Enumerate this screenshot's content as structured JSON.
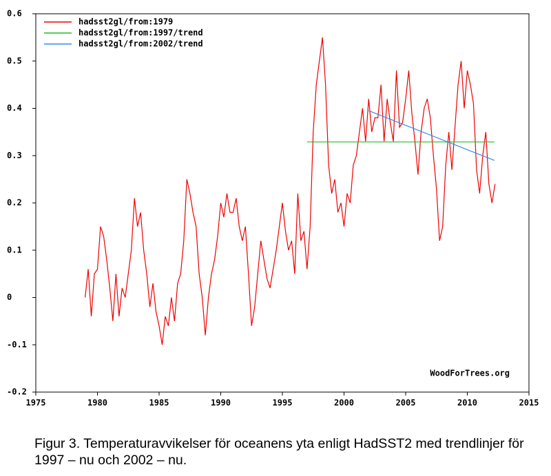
{
  "chart_data": {
    "type": "line",
    "legend": "top-left",
    "watermark": "WoodForTrees.org",
    "caption": "Figur 3. Temperaturavvikelser för oceanens yta enligt HadSST2 med trendlinjer för 1997 – nu och 2002 – nu.",
    "xlim": [
      1975,
      2015
    ],
    "xticks": [
      1975,
      1980,
      1985,
      1990,
      1995,
      2000,
      2005,
      2010,
      2015
    ],
    "ylim": [
      -0.2,
      0.6
    ],
    "yticks": [
      -0.2,
      -0.1,
      0,
      0.1,
      0.2,
      0.3,
      0.4,
      0.5,
      0.6
    ],
    "series": [
      {
        "name": "hadsst2gl/from:1979",
        "color": "#ee0000",
        "x": [
          1979,
          1979.25,
          1979.5,
          1979.75,
          1980,
          1980.25,
          1980.5,
          1980.75,
          1981,
          1981.25,
          1981.5,
          1981.75,
          1982,
          1982.25,
          1982.5,
          1982.75,
          1983,
          1983.25,
          1983.5,
          1983.75,
          1984,
          1984.25,
          1984.5,
          1984.75,
          1985,
          1985.25,
          1985.5,
          1985.75,
          1986,
          1986.25,
          1986.5,
          1986.75,
          1987,
          1987.25,
          1987.5,
          1987.75,
          1988,
          1988.25,
          1988.5,
          1988.75,
          1989,
          1989.25,
          1989.5,
          1989.75,
          1990,
          1990.25,
          1990.5,
          1990.75,
          1991,
          1991.25,
          1991.5,
          1991.75,
          1992,
          1992.25,
          1992.5,
          1992.75,
          1993,
          1993.25,
          1993.5,
          1993.75,
          1994,
          1994.25,
          1994.5,
          1994.75,
          1995,
          1995.25,
          1995.5,
          1995.75,
          1996,
          1996.25,
          1996.5,
          1996.75,
          1997,
          1997.25,
          1997.5,
          1997.75,
          1998,
          1998.25,
          1998.5,
          1998.75,
          1999,
          1999.25,
          1999.5,
          1999.75,
          2000,
          2000.25,
          2000.5,
          2000.75,
          2001,
          2001.25,
          2001.5,
          2001.75,
          2002,
          2002.25,
          2002.5,
          2002.75,
          2003,
          2003.25,
          2003.5,
          2003.75,
          2004,
          2004.25,
          2004.5,
          2004.75,
          2005,
          2005.25,
          2005.5,
          2005.75,
          2006,
          2006.25,
          2006.5,
          2006.75,
          2007,
          2007.25,
          2007.5,
          2007.75,
          2008,
          2008.25,
          2008.5,
          2008.75,
          2009,
          2009.25,
          2009.5,
          2009.75,
          2010,
          2010.25,
          2010.5,
          2010.75,
          2011,
          2011.25,
          2011.5,
          2011.75,
          2012,
          2012.25
        ],
        "values": [
          0.0,
          0.06,
          -0.04,
          0.05,
          0.06,
          0.15,
          0.13,
          0.08,
          0.02,
          -0.05,
          0.05,
          -0.04,
          0.02,
          0.0,
          0.05,
          0.1,
          0.21,
          0.15,
          0.18,
          0.1,
          0.05,
          -0.02,
          0.03,
          -0.03,
          -0.06,
          -0.1,
          -0.04,
          -0.06,
          0.0,
          -0.05,
          0.03,
          0.05,
          0.12,
          0.25,
          0.22,
          0.18,
          0.15,
          0.05,
          0.0,
          -0.08,
          0.0,
          0.05,
          0.08,
          0.13,
          0.2,
          0.17,
          0.22,
          0.18,
          0.18,
          0.21,
          0.15,
          0.12,
          0.15,
          0.05,
          -0.06,
          -0.02,
          0.05,
          0.12,
          0.08,
          0.04,
          0.02,
          0.06,
          0.1,
          0.15,
          0.2,
          0.14,
          0.1,
          0.12,
          0.05,
          0.22,
          0.12,
          0.14,
          0.06,
          0.15,
          0.35,
          0.45,
          0.5,
          0.55,
          0.45,
          0.28,
          0.22,
          0.25,
          0.18,
          0.2,
          0.15,
          0.22,
          0.2,
          0.28,
          0.3,
          0.35,
          0.4,
          0.33,
          0.42,
          0.35,
          0.38,
          0.38,
          0.45,
          0.33,
          0.42,
          0.37,
          0.33,
          0.48,
          0.36,
          0.37,
          0.42,
          0.48,
          0.39,
          0.33,
          0.26,
          0.35,
          0.4,
          0.42,
          0.38,
          0.3,
          0.23,
          0.12,
          0.15,
          0.28,
          0.35,
          0.27,
          0.36,
          0.45,
          0.5,
          0.4,
          0.48,
          0.45,
          0.41,
          0.27,
          0.22,
          0.3,
          0.35,
          0.24,
          0.2,
          0.24
        ]
      },
      {
        "name": "hadsst2gl/from:1997/trend",
        "color": "#22bb22",
        "x": [
          1997,
          2012.2
        ],
        "values": [
          0.329,
          0.329
        ]
      },
      {
        "name": "hadsst2gl/from:2002/trend",
        "color": "#3388ee",
        "x": [
          2002,
          2012.2
        ],
        "values": [
          0.395,
          0.29
        ]
      }
    ]
  }
}
